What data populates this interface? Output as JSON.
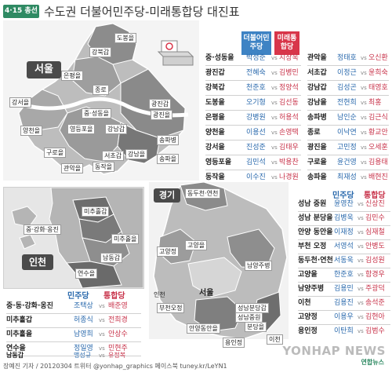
{
  "header": {
    "ribbon": "4·15 총선",
    "title": "수도권 더불어민주당-미래통합당 대진표"
  },
  "legend": {
    "democratic": "더불어민주당",
    "unified": "미래통합당",
    "dem_short": "민주당",
    "uni_short": "통합당",
    "vs": "vs",
    "dem_color": "#3e83c4",
    "uni_color": "#d8364a"
  },
  "seoul": {
    "tag": "서울",
    "map_labels": [
      "도봉을",
      "강북갑",
      "은평을",
      "종로",
      "중·성동을",
      "강서을",
      "양천을",
      "영등포을",
      "구로을",
      "관악을",
      "동작을",
      "서초갑",
      "강남갑",
      "강남을",
      "광진갑",
      "광진을",
      "송파병",
      "송파을"
    ],
    "col1": [
      {
        "district": "중·성동을",
        "dem": "박성준",
        "uni": "지상욱"
      },
      {
        "district": "광진갑",
        "dem": "전혜숙",
        "uni": "김병민"
      },
      {
        "district": "강북갑",
        "dem": "천준호",
        "uni": "정양석"
      },
      {
        "district": "도봉을",
        "dem": "오기형",
        "uni": "김선동"
      },
      {
        "district": "은평을",
        "dem": "강병원",
        "uni": "허용석"
      },
      {
        "district": "양천을",
        "dem": "이용선",
        "uni": "손영택"
      },
      {
        "district": "강서을",
        "dem": "진성준",
        "uni": "김태우"
      },
      {
        "district": "영등포을",
        "dem": "김민석",
        "uni": "박용찬"
      },
      {
        "district": "동작을",
        "dem": "이수진",
        "uni": "나경원"
      }
    ],
    "col2": [
      {
        "district": "관악을",
        "dem": "정태호",
        "uni": "오신환"
      },
      {
        "district": "서초갑",
        "dem": "이정근",
        "uni": "윤희숙"
      },
      {
        "district": "강남갑",
        "dem": "김성곤",
        "uni": "태영호"
      },
      {
        "district": "강남을",
        "dem": "전현희",
        "uni": "최홍"
      },
      {
        "district": "송파병",
        "dem": "남인순",
        "uni": "김근식"
      },
      {
        "district": "종로",
        "dem": "이낙연",
        "uni": "황교안"
      },
      {
        "district": "광진을",
        "dem": "고민정",
        "uni": "오세훈"
      },
      {
        "district": "구로을",
        "dem": "윤건영",
        "uni": "김용태"
      },
      {
        "district": "송파을",
        "dem": "최재성",
        "uni": "배현진"
      }
    ]
  },
  "incheon": {
    "tag": "인천",
    "map_labels": [
      "중·강화·옹진",
      "미추홀갑",
      "미추홀을",
      "남동갑",
      "연수을"
    ],
    "rows": [
      {
        "district": "중·동·강화·옹진",
        "dem": "조택상",
        "uni": "배준영"
      },
      {
        "district": "미추홀갑",
        "dem": "허종식",
        "uni": "전희경"
      },
      {
        "district": "미추홀을",
        "dem": "남영희",
        "uni": "안상수"
      },
      {
        "district": "연수을",
        "dem": "정일영",
        "uni": "민현주"
      },
      {
        "district": "남동갑",
        "dem": "맹성규",
        "uni": "유정복"
      }
    ]
  },
  "gyeonggi": {
    "tag": "경기",
    "map_labels": [
      "동두천·연천",
      "고양정",
      "고양을",
      "남양주병",
      "인천",
      "서울",
      "부천오정",
      "안양동안을",
      "성남분당갑",
      "성남중원",
      "분당을",
      "용인정",
      "이천"
    ],
    "rows": [
      {
        "district": "성남 중원",
        "dem": "윤영찬",
        "uni": "신상진"
      },
      {
        "district": "성남 분당을",
        "dem": "김병욱",
        "uni": "김민수"
      },
      {
        "district": "안양 동안을",
        "dem": "이재정",
        "uni": "심재철"
      },
      {
        "district": "부천 오정",
        "dem": "서영석",
        "uni": "안병도"
      },
      {
        "district": "동두천·연천",
        "dem": "서동욱",
        "uni": "김성원"
      },
      {
        "district": "고양을",
        "dem": "한준호",
        "uni": "함경우"
      },
      {
        "district": "남양주병",
        "dem": "김용민",
        "uni": "주광덕"
      },
      {
        "district": "이천",
        "dem": "김용진",
        "uni": "송석준"
      },
      {
        "district": "고양정",
        "dem": "이용우",
        "uni": "김현아"
      },
      {
        "district": "용인정",
        "dem": "이탄희",
        "uni": "김범수"
      }
    ]
  },
  "footer": {
    "credit": "장예진 기자 / 20120304 트위터 @yonhap_graphics 페이스북 tuney.kr/LeYN1",
    "logo": "YONHAP NEWS",
    "logo_sub": "연합뉴스"
  }
}
